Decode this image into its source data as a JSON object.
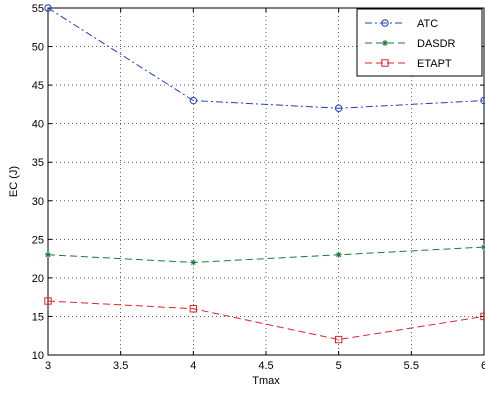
{
  "chart_data": {
    "type": "line",
    "title": "",
    "xlabel": "Tmax",
    "ylabel": "EC (J)",
    "x": [
      3,
      4,
      5,
      6
    ],
    "xlim": [
      3,
      6
    ],
    "ylim": [
      10,
      55
    ],
    "x_ticks": [
      "3",
      "3.5",
      "4",
      "4.5",
      "5",
      "5.5",
      "6"
    ],
    "y_ticks": [
      "10",
      "15",
      "20",
      "25",
      "30",
      "35",
      "40",
      "45",
      "50",
      "55"
    ],
    "grid": true,
    "legend_position": "top-right",
    "series": [
      {
        "name": "ATC",
        "values": [
          55,
          43,
          42,
          43
        ],
        "color": "#1f3fbf",
        "marker": "circle",
        "line_style": "dash-dot"
      },
      {
        "name": "DASDR",
        "values": [
          23,
          22,
          23,
          24
        ],
        "color": "#1a7a3a",
        "marker": "asterisk",
        "line_style": "dashed"
      },
      {
        "name": "ETAPT",
        "values": [
          17,
          16,
          12,
          15
        ],
        "color": "#e0202a",
        "marker": "square",
        "line_style": "dashed"
      }
    ]
  }
}
